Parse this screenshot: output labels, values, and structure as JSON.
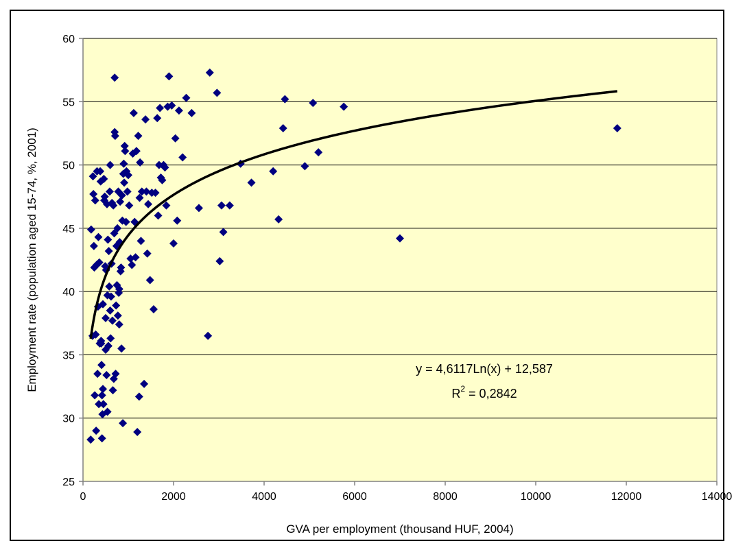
{
  "chart_data": {
    "type": "scatter",
    "xlabel": "GVA per employment (thousand HUF, 2004)",
    "ylabel": "Employment rate (population aged 15-74, %, 2001)",
    "xlim": [
      0,
      14000
    ],
    "ylim": [
      25,
      60
    ],
    "xticks": [
      0,
      2000,
      4000,
      6000,
      8000,
      10000,
      12000,
      14000
    ],
    "yticks": [
      25,
      30,
      35,
      40,
      45,
      50,
      55,
      60
    ],
    "grid": "horizontal",
    "plot_background": "#ffffcc",
    "marker_color": "#000080",
    "trendline": {
      "type": "logarithmic",
      "a": 4.6117,
      "b": 12.587,
      "x_range": [
        170,
        11800
      ],
      "color": "#000000",
      "equation_label": "y = 4,6117Ln(x) + 12,587",
      "r2_label_prefix": "R",
      "r2_label_sup": "2",
      "r2_label_suffix": " = 0,2842"
    },
    "points": [
      [
        170,
        28.3
      ],
      [
        180,
        44.9
      ],
      [
        210,
        36.5
      ],
      [
        220,
        49.1
      ],
      [
        230,
        47.7
      ],
      [
        240,
        43.6
      ],
      [
        250,
        41.9
      ],
      [
        260,
        31.8
      ],
      [
        270,
        47.2
      ],
      [
        280,
        36.6
      ],
      [
        290,
        29.0
      ],
      [
        300,
        42.1
      ],
      [
        310,
        49.5
      ],
      [
        320,
        33.5
      ],
      [
        330,
        38.8
      ],
      [
        340,
        44.3
      ],
      [
        350,
        31.1
      ],
      [
        360,
        42.3
      ],
      [
        370,
        35.9
      ],
      [
        380,
        49.5
      ],
      [
        390,
        48.7
      ],
      [
        400,
        35.9
      ],
      [
        400,
        36.1
      ],
      [
        410,
        34.2
      ],
      [
        420,
        28.4
      ],
      [
        420,
        31.8
      ],
      [
        430,
        30.3
      ],
      [
        440,
        32.3
      ],
      [
        440,
        39.0
      ],
      [
        450,
        31.1
      ],
      [
        460,
        48.9
      ],
      [
        470,
        47.2
      ],
      [
        480,
        47.5
      ],
      [
        490,
        42.0
      ],
      [
        500,
        37.9
      ],
      [
        500,
        35.4
      ],
      [
        510,
        41.7
      ],
      [
        520,
        33.4
      ],
      [
        530,
        46.9
      ],
      [
        540,
        30.5
      ],
      [
        540,
        39.7
      ],
      [
        550,
        44.1
      ],
      [
        560,
        35.7
      ],
      [
        570,
        43.2
      ],
      [
        580,
        40.4
      ],
      [
        590,
        47.9
      ],
      [
        600,
        50.0
      ],
      [
        600,
        38.5
      ],
      [
        610,
        36.3
      ],
      [
        620,
        39.6
      ],
      [
        630,
        42.2
      ],
      [
        640,
        47.0
      ],
      [
        650,
        37.7
      ],
      [
        660,
        32.2
      ],
      [
        670,
        46.8
      ],
      [
        680,
        33.1
      ],
      [
        690,
        44.6
      ],
      [
        700,
        52.6
      ],
      [
        700,
        56.9
      ],
      [
        710,
        52.3
      ],
      [
        720,
        33.5
      ],
      [
        730,
        38.9
      ],
      [
        740,
        43.6
      ],
      [
        750,
        40.5
      ],
      [
        760,
        45.0
      ],
      [
        770,
        38.1
      ],
      [
        780,
        47.9
      ],
      [
        790,
        39.9
      ],
      [
        800,
        37.4
      ],
      [
        800,
        40.2
      ],
      [
        810,
        43.9
      ],
      [
        820,
        47.1
      ],
      [
        830,
        41.6
      ],
      [
        840,
        41.9
      ],
      [
        850,
        35.5
      ],
      [
        860,
        47.6
      ],
      [
        870,
        45.6
      ],
      [
        880,
        29.6
      ],
      [
        890,
        49.3
      ],
      [
        900,
        50.1
      ],
      [
        910,
        48.6
      ],
      [
        920,
        51.5
      ],
      [
        930,
        51.1
      ],
      [
        950,
        45.5
      ],
      [
        960,
        49.5
      ],
      [
        980,
        47.9
      ],
      [
        1000,
        49.2
      ],
      [
        1020,
        46.8
      ],
      [
        1050,
        42.6
      ],
      [
        1080,
        42.1
      ],
      [
        1100,
        50.9
      ],
      [
        1120,
        54.1
      ],
      [
        1140,
        45.5
      ],
      [
        1160,
        42.7
      ],
      [
        1180,
        51.1
      ],
      [
        1200,
        28.9
      ],
      [
        1220,
        52.3
      ],
      [
        1240,
        31.7
      ],
      [
        1250,
        47.4
      ],
      [
        1260,
        50.2
      ],
      [
        1280,
        44.0
      ],
      [
        1300,
        47.9
      ],
      [
        1350,
        32.7
      ],
      [
        1380,
        53.6
      ],
      [
        1400,
        47.9
      ],
      [
        1420,
        43.0
      ],
      [
        1440,
        46.9
      ],
      [
        1480,
        40.9
      ],
      [
        1520,
        47.8
      ],
      [
        1560,
        38.6
      ],
      [
        1600,
        47.8
      ],
      [
        1640,
        53.7
      ],
      [
        1660,
        46.0
      ],
      [
        1680,
        50.0
      ],
      [
        1700,
        54.5
      ],
      [
        1720,
        49.0
      ],
      [
        1750,
        48.8
      ],
      [
        1780,
        50.0
      ],
      [
        1810,
        49.8
      ],
      [
        1840,
        46.8
      ],
      [
        1870,
        54.6
      ],
      [
        1900,
        57.0
      ],
      [
        1960,
        54.7
      ],
      [
        2000,
        43.8
      ],
      [
        2040,
        52.1
      ],
      [
        2080,
        45.6
      ],
      [
        2120,
        54.3
      ],
      [
        2200,
        50.6
      ],
      [
        2280,
        55.3
      ],
      [
        2400,
        54.1
      ],
      [
        2560,
        46.6
      ],
      [
        2760,
        36.5
      ],
      [
        2800,
        57.3
      ],
      [
        2960,
        55.7
      ],
      [
        3020,
        42.4
      ],
      [
        3060,
        46.8
      ],
      [
        3100,
        44.7
      ],
      [
        3240,
        46.8
      ],
      [
        3480,
        50.1
      ],
      [
        3720,
        48.6
      ],
      [
        4200,
        49.5
      ],
      [
        4320,
        45.7
      ],
      [
        4420,
        52.9
      ],
      [
        4460,
        55.2
      ],
      [
        4900,
        49.9
      ],
      [
        5080,
        54.9
      ],
      [
        5200,
        51.0
      ],
      [
        5760,
        54.6
      ],
      [
        7000,
        44.2
      ],
      [
        11800,
        52.9
      ]
    ]
  }
}
